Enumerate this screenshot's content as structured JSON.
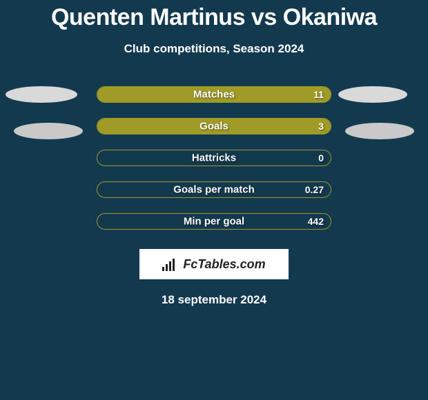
{
  "title": "Quenten Martinus vs Okaniwa",
  "subtitle": "Club competitions, Season 2024",
  "background_color": "#13394f",
  "bar_border_color": "#a09b26",
  "bar_fill_color": "#a09b26",
  "text_color": "#ffffff",
  "stats": [
    {
      "label": "Matches",
      "value": "11",
      "fill_pct": 100
    },
    {
      "label": "Goals",
      "value": "3",
      "fill_pct": 100
    },
    {
      "label": "Hattricks",
      "value": "0",
      "fill_pct": 0
    },
    {
      "label": "Goals per match",
      "value": "0.27",
      "fill_pct": 0
    },
    {
      "label": "Min per goal",
      "value": "442",
      "fill_pct": 0
    }
  ],
  "logo_text": "FcTables.com",
  "date": "18 september 2024",
  "ellipses": {
    "left": [
      "#d9d9d9",
      "#c9c9c9"
    ],
    "right": [
      "#d9d9d9",
      "#c9c9c9"
    ]
  }
}
